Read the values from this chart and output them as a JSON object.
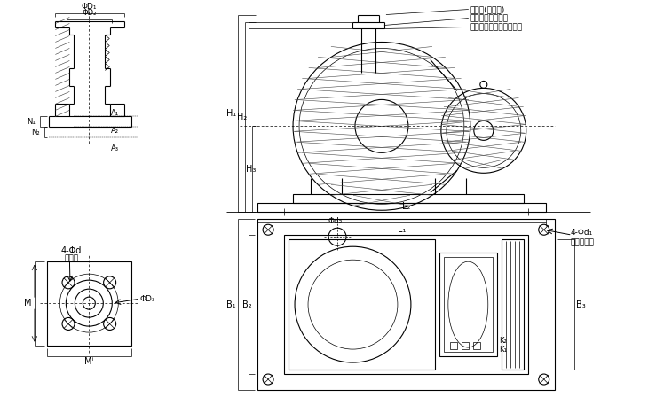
{
  "bg_color": "#ffffff",
  "line_color": "#000000",
  "lw": 0.8,
  "annotations": {
    "label1": "排气管(在侧面)",
    "label2": "进气口软管联接处",
    "label3": "用法兰联接的进气口平面",
    "fl_label": "4-Φd",
    "fl_sub": "法兰孔",
    "phiD3": "ΦD₃",
    "phiD1": "ΦD₁",
    "phiD2": "ΦD₂",
    "H1": "H₁",
    "H2": "H₂",
    "H3": "H₃",
    "L1": "L₁",
    "L2": "L₂",
    "B1": "B₁",
    "B2": "B₂",
    "B3": "B₃",
    "K1": "K₁",
    "K2": "K₂",
    "N1": "N₁",
    "N2": "N₂",
    "A1": "A₁",
    "A2": "A₂",
    "A3": "A₃",
    "phid2": "Φd₂",
    "M": "M",
    "M1": "Mⁱ",
    "label4": "4-Φd₁",
    "label5": "地脚细钉孔"
  }
}
